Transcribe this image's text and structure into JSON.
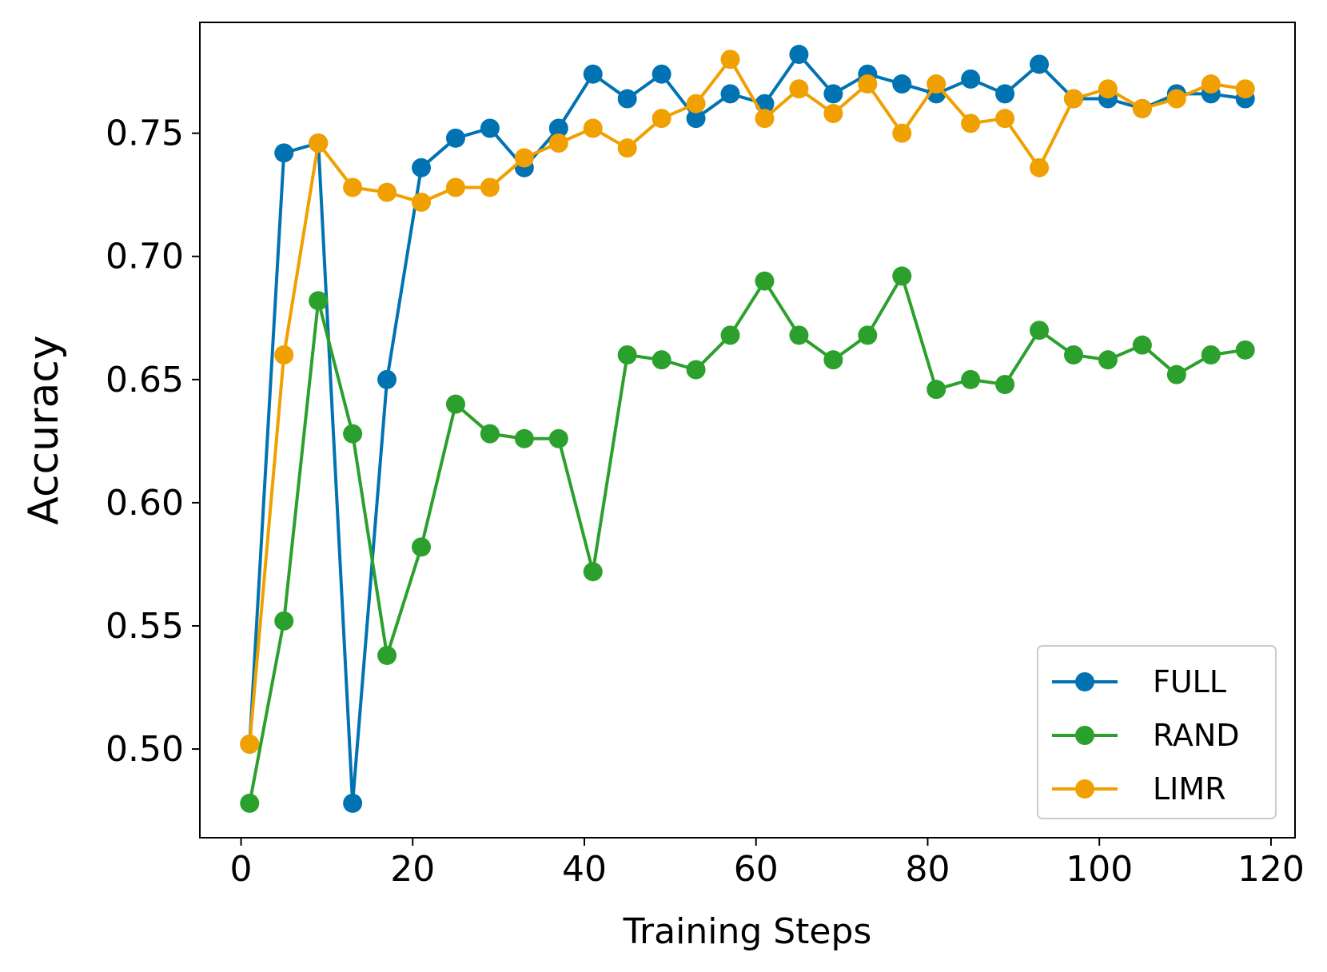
{
  "chart_data": {
    "type": "line",
    "title": "",
    "xlabel": "Training Steps",
    "ylabel": "Accuracy",
    "xlim": [
      -4.8,
      122.8
    ],
    "ylim": [
      0.464,
      0.795
    ],
    "xticks": [
      0,
      20,
      40,
      60,
      80,
      100,
      120
    ],
    "xtick_labels": [
      "0",
      "20",
      "40",
      "60",
      "80",
      "100",
      "120"
    ],
    "yticks": [
      0.5,
      0.55,
      0.6,
      0.65,
      0.7,
      0.75
    ],
    "ytick_labels": [
      "0.50",
      "0.55",
      "0.60",
      "0.65",
      "0.70",
      "0.75"
    ],
    "grid": false,
    "legend_position": "lower-right",
    "x": [
      1,
      5,
      9,
      13,
      17,
      21,
      25,
      29,
      33,
      37,
      41,
      45,
      49,
      53,
      57,
      61,
      65,
      69,
      73,
      77,
      81,
      85,
      89,
      93,
      97,
      101,
      105,
      109,
      113,
      117
    ],
    "series": [
      {
        "name": "FULL",
        "color": "#0173b2",
        "values": [
          0.502,
          0.742,
          0.746,
          0.478,
          0.65,
          0.736,
          0.748,
          0.752,
          0.736,
          0.752,
          0.774,
          0.764,
          0.774,
          0.756,
          0.766,
          0.762,
          0.782,
          0.766,
          0.774,
          0.77,
          0.766,
          0.772,
          0.766,
          0.778,
          0.764,
          0.764,
          0.76,
          0.766,
          0.766,
          0.764
        ]
      },
      {
        "name": "RAND",
        "color": "#2ca02c",
        "values": [
          0.478,
          0.552,
          0.682,
          0.628,
          0.538,
          0.582,
          0.64,
          0.628,
          0.626,
          0.626,
          0.572,
          0.66,
          0.658,
          0.654,
          0.668,
          0.69,
          0.668,
          0.658,
          0.668,
          0.692,
          0.646,
          0.65,
          0.648,
          0.67,
          0.66,
          0.658,
          0.664,
          0.652,
          0.66,
          0.662
        ]
      },
      {
        "name": "LIMR",
        "color": "#f0a000",
        "values": [
          0.502,
          0.66,
          0.746,
          0.728,
          0.726,
          0.722,
          0.728,
          0.728,
          0.74,
          0.746,
          0.752,
          0.744,
          0.756,
          0.762,
          0.78,
          0.756,
          0.768,
          0.758,
          0.77,
          0.75,
          0.77,
          0.754,
          0.756,
          0.736,
          0.764,
          0.768,
          0.76,
          0.764,
          0.77,
          0.768
        ]
      }
    ]
  }
}
